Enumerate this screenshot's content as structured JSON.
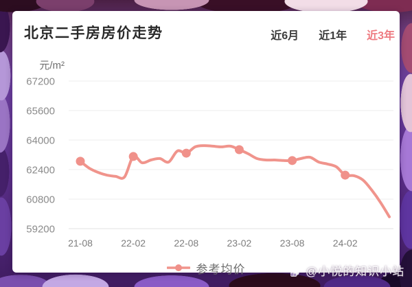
{
  "page": {
    "watermark": {
      "handle": "@小悦的知识小站",
      "logo": "du-clover-logo"
    }
  },
  "card": {
    "title": "北京二手房房价走势",
    "tabs": [
      {
        "label": "近6月",
        "active": false
      },
      {
        "label": "近1年",
        "active": false
      },
      {
        "label": "近3年",
        "active": true
      }
    ],
    "colors": {
      "active_tab": "#ee7a80",
      "title_text": "#2a2a2a",
      "tab_text": "#3c3c3c"
    }
  },
  "chart_data": {
    "type": "line",
    "title": "北京二手房房价走势",
    "xlabel": "",
    "ylabel": "元/m²",
    "unit": "元/m²",
    "ylim": [
      59200,
      67200
    ],
    "ytick_step": 1600,
    "yticks": [
      67200,
      65600,
      64000,
      62400,
      60800,
      59200
    ],
    "xticks_shown": [
      "21-08",
      "22-02",
      "22-08",
      "23-02",
      "23-08",
      "24-02"
    ],
    "grid": true,
    "legend_position": "bottom",
    "colors": {
      "line": "#f0948c",
      "dot": "#f0918a",
      "grid": "#ededed",
      "axis": "#e0e0e0",
      "tick_text": "#8b8b8b"
    },
    "series": [
      {
        "name": "参考均价",
        "color": "#f0948c",
        "x": [
          "21-08",
          "21-09",
          "21-10",
          "21-11",
          "21-12",
          "22-01",
          "22-02",
          "22-03",
          "22-04",
          "22-05",
          "22-06",
          "22-07",
          "22-08",
          "22-09",
          "22-10",
          "22-11",
          "22-12",
          "23-01",
          "23-02",
          "23-03",
          "23-04",
          "23-05",
          "23-06",
          "23-07",
          "23-08",
          "23-09",
          "23-10",
          "23-11",
          "23-12",
          "24-01",
          "24-02",
          "24-03",
          "24-04",
          "24-05",
          "24-06",
          "24-07"
        ],
        "values": [
          62850,
          62480,
          62250,
          62100,
          62030,
          62000,
          63110,
          62770,
          62920,
          63000,
          62810,
          63410,
          63290,
          63630,
          63700,
          63670,
          63630,
          63670,
          63480,
          63260,
          63000,
          62920,
          62920,
          62890,
          62890,
          63000,
          63070,
          62810,
          62700,
          62550,
          62100,
          62070,
          61840,
          61290,
          60620,
          59840
        ],
        "marked_x": [
          "21-08",
          "22-02",
          "22-08",
          "23-02",
          "23-08",
          "24-02"
        ]
      }
    ]
  }
}
